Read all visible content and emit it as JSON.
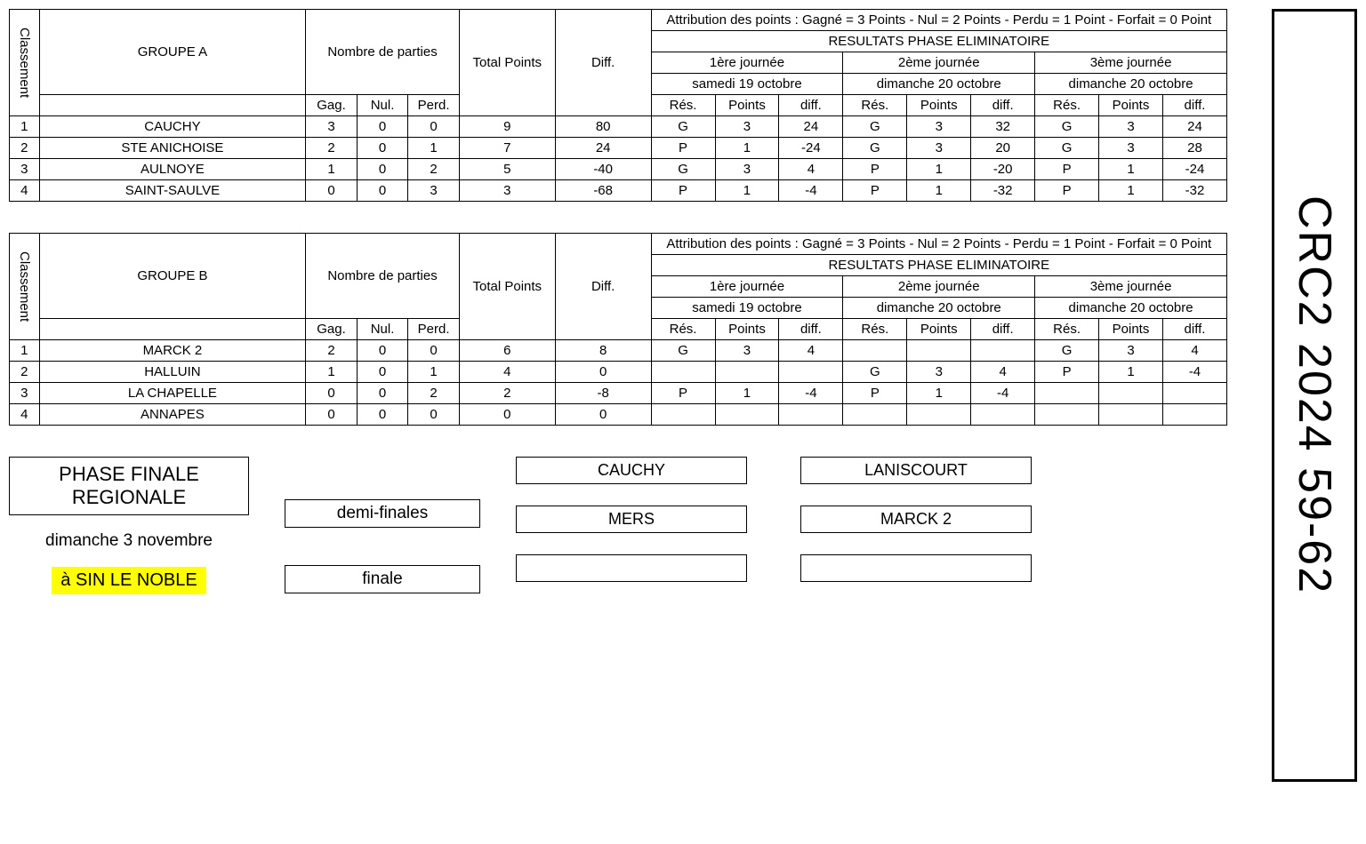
{
  "sidebar_title": "CRC2 2024 59-62",
  "labels": {
    "classement": "Classement",
    "nombre": "Nombre de parties",
    "gag": "Gag.",
    "nul": "Nul.",
    "perd": "Perd.",
    "total": "Total Points",
    "diff": "Diff.",
    "attrib": "Attribution des points : Gagné = 3 Points - Nul = 2 Points - Perdu = 1 Point - Forfait = 0 Point",
    "phase": "RESULTATS PHASE ELIMINATOIRE",
    "res": "Rés.",
    "points": "Points",
    "diffcol": "diff."
  },
  "journees": [
    {
      "title": "1ère journée",
      "date": "samedi 19 octobre"
    },
    {
      "title": "2ème journée",
      "date": "dimanche 20 octobre"
    },
    {
      "title": "3ème journée",
      "date": "dimanche 20 octobre"
    }
  ],
  "groups": [
    {
      "name": "GROUPE A",
      "rows": [
        {
          "rank": "1",
          "team": "CAUCHY",
          "gag": "3",
          "nul": "0",
          "perd": "0",
          "tp": "9",
          "diff": "80",
          "j1": {
            "res": "G",
            "pts": "3",
            "d": "24"
          },
          "j2": {
            "res": "G",
            "pts": "3",
            "d": "32"
          },
          "j3": {
            "res": "G",
            "pts": "3",
            "d": "24"
          }
        },
        {
          "rank": "2",
          "team": "STE ANICHOISE",
          "gag": "2",
          "nul": "0",
          "perd": "1",
          "tp": "7",
          "diff": "24",
          "j1": {
            "res": "P",
            "pts": "1",
            "d": "-24"
          },
          "j2": {
            "res": "G",
            "pts": "3",
            "d": "20"
          },
          "j3": {
            "res": "G",
            "pts": "3",
            "d": "28"
          }
        },
        {
          "rank": "3",
          "team": "AULNOYE",
          "gag": "1",
          "nul": "0",
          "perd": "2",
          "tp": "5",
          "diff": "-40",
          "j1": {
            "res": "G",
            "pts": "3",
            "d": "4"
          },
          "j2": {
            "res": "P",
            "pts": "1",
            "d": "-20"
          },
          "j3": {
            "res": "P",
            "pts": "1",
            "d": "-24"
          }
        },
        {
          "rank": "4",
          "team": "SAINT-SAULVE",
          "gag": "0",
          "nul": "0",
          "perd": "3",
          "tp": "3",
          "diff": "-68",
          "j1": {
            "res": "P",
            "pts": "1",
            "d": "-4"
          },
          "j2": {
            "res": "P",
            "pts": "1",
            "d": "-32"
          },
          "j3": {
            "res": "P",
            "pts": "1",
            "d": "-32"
          }
        }
      ]
    },
    {
      "name": "GROUPE B",
      "rows": [
        {
          "rank": "1",
          "team": "MARCK 2",
          "gag": "2",
          "nul": "0",
          "perd": "0",
          "tp": "6",
          "diff": "8",
          "j1": {
            "res": "G",
            "pts": "3",
            "d": "4"
          },
          "j2": {
            "res": "",
            "pts": "",
            "d": ""
          },
          "j3": {
            "res": "G",
            "pts": "3",
            "d": "4"
          }
        },
        {
          "rank": "2",
          "team": "HALLUIN",
          "gag": "1",
          "nul": "0",
          "perd": "1",
          "tp": "4",
          "diff": "0",
          "j1": {
            "res": "",
            "pts": "",
            "d": ""
          },
          "j2": {
            "res": "G",
            "pts": "3",
            "d": "4"
          },
          "j3": {
            "res": "P",
            "pts": "1",
            "d": "-4"
          }
        },
        {
          "rank": "3",
          "team": "LA CHAPELLE",
          "gag": "0",
          "nul": "0",
          "perd": "2",
          "tp": "2",
          "diff": "-8",
          "j1": {
            "res": "P",
            "pts": "1",
            "d": "-4"
          },
          "j2": {
            "res": "P",
            "pts": "1",
            "d": "-4"
          },
          "j3": {
            "res": "",
            "pts": "",
            "d": ""
          }
        },
        {
          "rank": "4",
          "team": "ANNAPES",
          "gag": "0",
          "nul": "0",
          "perd": "0",
          "tp": "0",
          "diff": "0",
          "j1": {
            "res": "",
            "pts": "",
            "d": ""
          },
          "j2": {
            "res": "",
            "pts": "",
            "d": ""
          },
          "j3": {
            "res": "",
            "pts": "",
            "d": ""
          }
        }
      ]
    }
  ],
  "finals": {
    "title": "PHASE FINALE REGIONALE",
    "date": "dimanche 3 novembre",
    "location": "à SIN LE NOBLE",
    "semi_label": "demi-finales",
    "final_label": "finale",
    "semi1": [
      "CAUCHY",
      "MERS"
    ],
    "semi2": [
      "LANISCOURT",
      "MARCK 2"
    ],
    "final": [
      "",
      ""
    ]
  }
}
